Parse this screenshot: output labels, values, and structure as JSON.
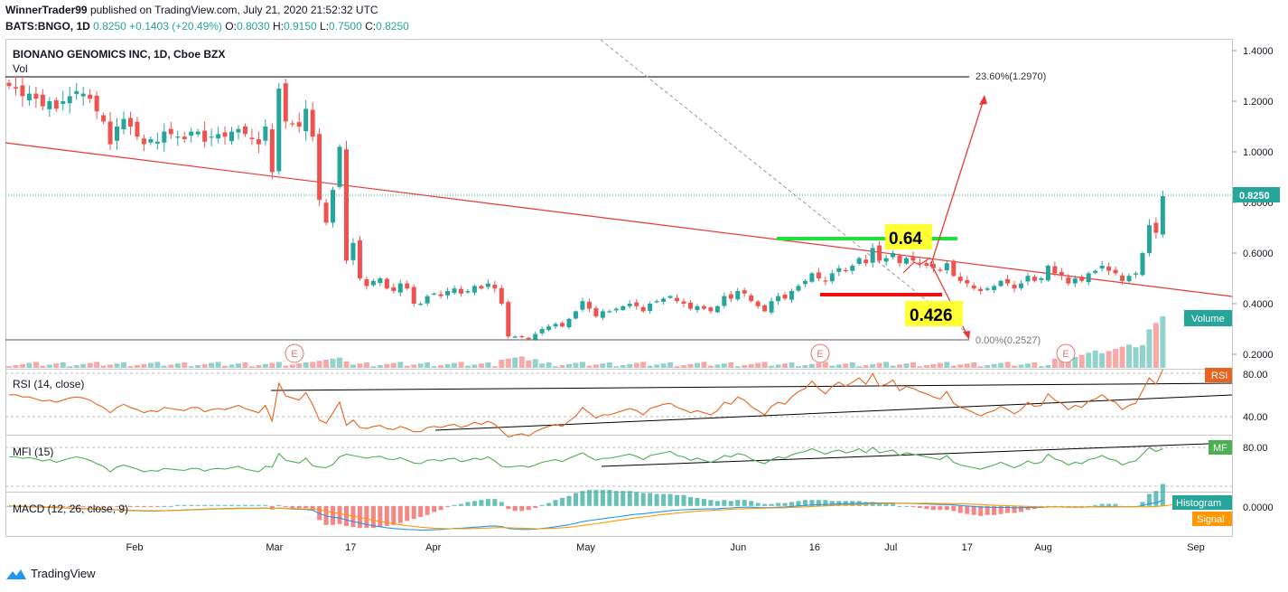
{
  "header": {
    "user": "WinnerTrader99",
    "published_text": "published on TradingView.com, July 21, 2020 21:52:32 UTC",
    "symbol": "BATS:BNGO, 1D",
    "price": "0.8250",
    "change": "+0.1403 (+20.49%)",
    "o_label": "O:",
    "o_value": "0.8030",
    "h_label": "H:",
    "h_value": "0.9150",
    "l_label": "L:",
    "l_value": "0.7500",
    "c_label": "C:",
    "c_value": "0.8250"
  },
  "footer": {
    "brand": "TradingView"
  },
  "colors": {
    "up": "#26a69a",
    "down": "#ef5350",
    "trend": "#e53935",
    "rsi_line": "#e6641f",
    "mfi_line": "#4caf50",
    "macd": "#2196f3",
    "signal": "#ff9800",
    "green_level": "#22e03a",
    "red_level": "#f01010",
    "highlight": "#ffff33"
  },
  "chart_data": [
    {
      "type": "candlestick",
      "title": "BIONANO GENOMICS INC, 1D, Cboe BZX",
      "volume_label": "Vol",
      "volume_badge": "Volume",
      "price_tag": "0.8250",
      "y_ticks": [
        "1.4000",
        "1.2000",
        "1.0000",
        "0.8000",
        "0.6000",
        "0.4000",
        "0.2000"
      ],
      "ylim": [
        0.15,
        1.43
      ],
      "x_ticks": [
        "Feb",
        "Mar",
        "17",
        "Apr",
        "May",
        "Jun",
        "16",
        "Jul",
        "17",
        "Aug",
        "Sep"
      ],
      "earnings_markers": [
        "E",
        "E",
        "E"
      ],
      "annotations": {
        "fib_upper": "23.60%(1.2970)",
        "fib_lower": "0.00%(0.2527)",
        "green_label": "0.64",
        "red_label": "0.426"
      },
      "close": [
        1.26,
        1.25,
        1.22,
        1.23,
        1.21,
        1.18,
        1.2,
        1.17,
        1.2,
        1.22,
        1.24,
        1.23,
        1.21,
        1.16,
        1.12,
        1.03,
        1.1,
        1.13,
        1.1,
        1.06,
        1.03,
        1.05,
        1.04,
        1.08,
        1.07,
        1.06,
        1.05,
        1.08,
        1.08,
        1.04,
        1.06,
        1.07,
        1.06,
        1.08,
        1.09,
        1.07,
        1.05,
        1.03,
        1.1,
        0.92,
        1.25,
        1.12,
        1.11,
        1.1,
        1.17,
        1.06,
        0.81,
        0.72,
        0.85,
        1.02,
        0.57,
        0.64,
        0.5,
        0.47,
        0.49,
        0.5,
        0.46,
        0.45,
        0.48,
        0.46,
        0.4,
        0.4,
        0.43,
        0.44,
        0.43,
        0.45,
        0.46,
        0.44,
        0.45,
        0.47,
        0.46,
        0.48,
        0.46,
        0.4,
        0.27,
        0.27,
        0.27,
        0.26,
        0.28,
        0.3,
        0.31,
        0.32,
        0.31,
        0.34,
        0.37,
        0.41,
        0.38,
        0.35,
        0.37,
        0.37,
        0.38,
        0.39,
        0.4,
        0.39,
        0.37,
        0.4,
        0.41,
        0.42,
        0.43,
        0.41,
        0.4,
        0.38,
        0.39,
        0.38,
        0.37,
        0.39,
        0.43,
        0.42,
        0.45,
        0.44,
        0.41,
        0.39,
        0.37,
        0.41,
        0.43,
        0.42,
        0.45,
        0.47,
        0.49,
        0.52,
        0.5,
        0.49,
        0.52,
        0.54,
        0.53,
        0.55,
        0.58,
        0.56,
        0.62,
        0.57,
        0.58,
        0.6,
        0.56,
        0.58,
        0.57,
        0.56,
        0.55,
        0.54,
        0.53,
        0.56,
        0.51,
        0.49,
        0.48,
        0.46,
        0.45,
        0.46,
        0.47,
        0.49,
        0.48,
        0.46,
        0.48,
        0.51,
        0.49,
        0.5,
        0.55,
        0.52,
        0.51,
        0.48,
        0.5,
        0.49,
        0.52,
        0.53,
        0.55,
        0.53,
        0.52,
        0.49,
        0.51,
        0.52,
        0.6,
        0.71,
        0.68,
        0.825
      ],
      "rsi": {
        "label": "RSI (14, close)",
        "badge": "RSI",
        "y_ticks": [
          "80.00",
          "40.00"
        ],
        "ylim": [
          25,
          85
        ],
        "values": [
          62,
          62,
          60,
          60,
          58,
          56,
          57,
          55,
          57,
          59,
          60,
          59,
          57,
          53,
          50,
          45,
          50,
          53,
          50,
          48,
          45,
          47,
          46,
          50,
          49,
          48,
          47,
          50,
          50,
          46,
          48,
          49,
          48,
          50,
          52,
          49,
          47,
          45,
          52,
          37,
          73,
          61,
          59,
          57,
          64,
          53,
          38,
          35,
          45,
          55,
          33,
          38,
          31,
          30,
          32,
          33,
          30,
          29,
          32,
          30,
          27,
          27,
          31,
          32,
          31,
          33,
          34,
          31,
          33,
          36,
          34,
          37,
          34,
          28,
          22,
          24,
          25,
          23,
          27,
          30,
          32,
          34,
          32,
          37,
          42,
          50,
          45,
          40,
          43,
          43,
          45,
          47,
          49,
          47,
          43,
          49,
          51,
          53,
          54,
          50,
          48,
          45,
          47,
          45,
          43,
          47,
          55,
          53,
          60,
          57,
          51,
          47,
          43,
          51,
          55,
          53,
          60,
          65,
          68,
          75,
          68,
          63,
          70,
          74,
          70,
          74,
          78,
          72,
          82,
          70,
          72,
          76,
          66,
          70,
          68,
          65,
          63,
          60,
          58,
          65,
          54,
          50,
          48,
          45,
          42,
          45,
          47,
          51,
          48,
          44,
          48,
          55,
          51,
          52,
          63,
          57,
          54,
          48,
          52,
          50,
          56,
          58,
          62,
          57,
          55,
          48,
          52,
          54,
          66,
          78,
          72,
          86
        ]
      },
      "mfi": {
        "label": "MFI (15)",
        "badge": "MF",
        "y_ticks": [
          "80.00"
        ],
        "ylim": [
          0,
          100
        ],
        "values": [
          70,
          70,
          68,
          69,
          67,
          64,
          66,
          62,
          65,
          68,
          70,
          68,
          65,
          60,
          56,
          48,
          55,
          58,
          55,
          52,
          48,
          50,
          49,
          53,
          52,
          51,
          50,
          53,
          53,
          49,
          52,
          53,
          52,
          54,
          56,
          52,
          50,
          48,
          56,
          55,
          75,
          65,
          63,
          61,
          68,
          57,
          55,
          54,
          59,
          70,
          74,
          72,
          70,
          68,
          70,
          71,
          67,
          66,
          69,
          65,
          61,
          60,
          65,
          66,
          64,
          67,
          68,
          63,
          65,
          68,
          66,
          70,
          64,
          56,
          55,
          56,
          57,
          55,
          58,
          62,
          64,
          66,
          63,
          68,
          72,
          76,
          70,
          65,
          68,
          68,
          70,
          72,
          74,
          71,
          66,
          72,
          74,
          76,
          78,
          72,
          70,
          65,
          68,
          65,
          62,
          66,
          72,
          70,
          75,
          73,
          67,
          63,
          60,
          66,
          70,
          68,
          73,
          76,
          78,
          82,
          78,
          74,
          78,
          80,
          76,
          78,
          82,
          76,
          84,
          76,
          78,
          80,
          72,
          76,
          74,
          72,
          70,
          68,
          66,
          72,
          62,
          58,
          56,
          54,
          52,
          55,
          58,
          62,
          58,
          54,
          58,
          64,
          60,
          62,
          74,
          67,
          64,
          58,
          62,
          60,
          66,
          68,
          72,
          67,
          65,
          58,
          62,
          64,
          74,
          84,
          78,
          82
        ]
      },
      "macd": {
        "label": "MACD (12, 26, close, 9)",
        "badge_hist": "Histogram",
        "badge_signal": "Signal",
        "y_ticks": [
          "0.0000"
        ],
        "ylim": [
          -0.12,
          0.05
        ],
        "macd": [
          0.0,
          -0.001,
          -0.002,
          -0.003,
          -0.004,
          -0.005,
          -0.006,
          -0.007,
          -0.008,
          -0.009,
          -0.01,
          -0.011,
          -0.012,
          -0.013,
          -0.014,
          -0.015,
          -0.016,
          -0.017,
          -0.018,
          -0.019,
          -0.02,
          -0.02,
          -0.02,
          -0.019,
          -0.018,
          -0.017,
          -0.016,
          -0.015,
          -0.014,
          -0.013,
          -0.012,
          -0.011,
          -0.01,
          -0.01,
          -0.009,
          -0.009,
          -0.009,
          -0.009,
          -0.008,
          -0.012,
          -0.008,
          -0.01,
          -0.012,
          -0.013,
          -0.014,
          -0.017,
          -0.03,
          -0.04,
          -0.045,
          -0.048,
          -0.056,
          -0.062,
          -0.068,
          -0.074,
          -0.079,
          -0.083,
          -0.087,
          -0.09,
          -0.092,
          -0.094,
          -0.095,
          -0.096,
          -0.096,
          -0.095,
          -0.094,
          -0.092,
          -0.09,
          -0.089,
          -0.087,
          -0.085,
          -0.083,
          -0.081,
          -0.08,
          -0.082,
          -0.09,
          -0.093,
          -0.094,
          -0.094,
          -0.093,
          -0.09,
          -0.087,
          -0.083,
          -0.079,
          -0.075,
          -0.069,
          -0.063,
          -0.058,
          -0.055,
          -0.051,
          -0.047,
          -0.044,
          -0.04,
          -0.036,
          -0.033,
          -0.031,
          -0.028,
          -0.025,
          -0.022,
          -0.019,
          -0.017,
          -0.015,
          -0.014,
          -0.013,
          -0.012,
          -0.012,
          -0.011,
          -0.009,
          -0.008,
          -0.006,
          -0.005,
          -0.005,
          -0.006,
          -0.007,
          -0.006,
          -0.005,
          -0.004,
          -0.002,
          0.0,
          0.002,
          0.004,
          0.005,
          0.006,
          0.007,
          0.008,
          0.009,
          0.01,
          0.011,
          0.011,
          0.012,
          0.012,
          0.012,
          0.012,
          0.011,
          0.011,
          0.01,
          0.009,
          0.008,
          0.007,
          0.006,
          0.006,
          0.004,
          0.002,
          0.0,
          -0.002,
          -0.004,
          -0.005,
          -0.006,
          -0.006,
          -0.006,
          -0.007,
          -0.007,
          -0.006,
          -0.006,
          -0.006,
          -0.004,
          -0.004,
          -0.004,
          -0.005,
          -0.005,
          -0.005,
          -0.004,
          -0.003,
          -0.002,
          -0.002,
          -0.002,
          -0.003,
          -0.003,
          -0.003,
          0.001,
          0.009,
          0.013,
          0.022
        ],
        "signal": [
          0.0,
          -0.001,
          -0.001,
          -0.002,
          -0.003,
          -0.004,
          -0.005,
          -0.006,
          -0.007,
          -0.008,
          -0.009,
          -0.01,
          -0.011,
          -0.012,
          -0.013,
          -0.014,
          -0.015,
          -0.016,
          -0.017,
          -0.018,
          -0.019,
          -0.019,
          -0.019,
          -0.019,
          -0.018,
          -0.018,
          -0.017,
          -0.016,
          -0.015,
          -0.014,
          -0.013,
          -0.012,
          -0.011,
          -0.011,
          -0.01,
          -0.01,
          -0.01,
          -0.01,
          -0.009,
          -0.01,
          -0.009,
          -0.009,
          -0.01,
          -0.011,
          -0.012,
          -0.013,
          -0.016,
          -0.021,
          -0.026,
          -0.03,
          -0.036,
          -0.041,
          -0.046,
          -0.052,
          -0.057,
          -0.062,
          -0.067,
          -0.071,
          -0.075,
          -0.079,
          -0.082,
          -0.085,
          -0.087,
          -0.089,
          -0.09,
          -0.091,
          -0.091,
          -0.091,
          -0.091,
          -0.09,
          -0.089,
          -0.088,
          -0.087,
          -0.086,
          -0.087,
          -0.088,
          -0.089,
          -0.09,
          -0.091,
          -0.091,
          -0.09,
          -0.089,
          -0.087,
          -0.085,
          -0.082,
          -0.078,
          -0.074,
          -0.071,
          -0.067,
          -0.063,
          -0.059,
          -0.055,
          -0.051,
          -0.047,
          -0.044,
          -0.041,
          -0.037,
          -0.034,
          -0.031,
          -0.028,
          -0.026,
          -0.023,
          -0.021,
          -0.019,
          -0.018,
          -0.016,
          -0.015,
          -0.013,
          -0.012,
          -0.011,
          -0.01,
          -0.009,
          -0.009,
          -0.008,
          -0.008,
          -0.007,
          -0.006,
          -0.005,
          -0.004,
          -0.002,
          -0.001,
          0.0,
          0.002,
          0.003,
          0.004,
          0.005,
          0.006,
          0.007,
          0.008,
          0.009,
          0.01,
          0.01,
          0.011,
          0.011,
          0.011,
          0.011,
          0.011,
          0.011,
          0.01,
          0.01,
          0.009,
          0.009,
          0.008,
          0.007,
          0.006,
          0.004,
          0.003,
          0.002,
          0.001,
          0.0,
          -0.001,
          -0.002,
          -0.003,
          -0.004,
          -0.004,
          -0.004,
          -0.004,
          -0.004,
          -0.004,
          -0.004,
          -0.004,
          -0.004,
          -0.004,
          -0.004,
          -0.004,
          -0.003,
          -0.003,
          -0.003,
          -0.003,
          -0.003,
          -0.002,
          0.0,
          0.003,
          0.007
        ]
      }
    }
  ]
}
